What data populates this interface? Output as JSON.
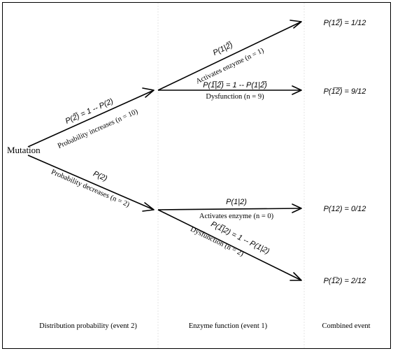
{
  "root_label": "Mutation",
  "branches": {
    "up": {
      "probability": "P(2̅) = 1 -- P(2)",
      "description": "Probability increases (n = 10)",
      "children": {
        "activates": {
          "probability": "P(1|2̅)",
          "description": "Activates enzyme (n = 1)",
          "outcome": "P(12̅) = 1/12"
        },
        "dysfunction": {
          "probability": "P(1̅|2̅) = 1 -- P(1|2̅)",
          "description": "Dysfunction (n = 9)",
          "outcome": "P(1̅2̅) = 9/12"
        }
      }
    },
    "down": {
      "probability": "P(2)",
      "description": "Probability decreases (n = 2)",
      "children": {
        "activates": {
          "probability": "P(1|2)",
          "description": "Activates enzyme (n = 0)",
          "outcome": "P(12) = 0/12"
        },
        "dysfunction": {
          "probability": "P(1̅|2) = 1 -- P(1|2)",
          "description": "Dysfunction (n = 2)",
          "outcome": "P(1̅2) = 2/12"
        }
      }
    }
  },
  "columns": {
    "event2": "Distribution probability (event 2)",
    "event1": "Enzyme function (event 1)",
    "combined": "Combined event"
  }
}
